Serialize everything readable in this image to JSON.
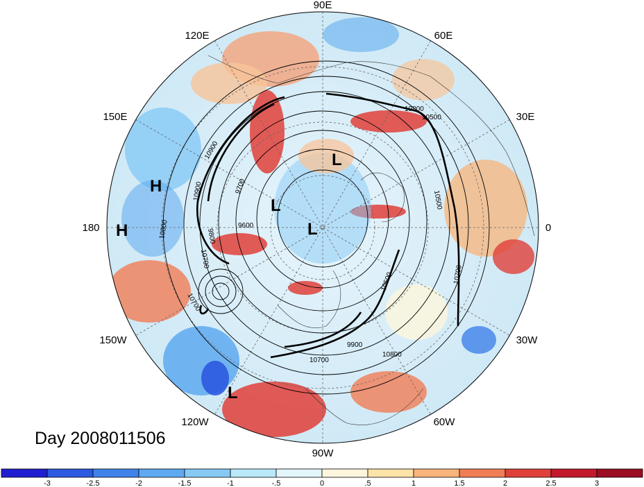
{
  "map": {
    "projection": "north-polar-stereographic",
    "center": "North Pole",
    "longitude_labels": [
      {
        "lon": 90,
        "text": "90E"
      },
      {
        "lon": 60,
        "text": "60E"
      },
      {
        "lon": 30,
        "text": "30E"
      },
      {
        "lon": 0,
        "text": "0"
      },
      {
        "lon": -30,
        "text": "30W"
      },
      {
        "lon": -60,
        "text": "60W"
      },
      {
        "lon": -90,
        "text": "90W"
      },
      {
        "lon": -120,
        "text": "120W"
      },
      {
        "lon": -150,
        "text": "150W"
      },
      {
        "lon": 180,
        "text": "180"
      },
      {
        "lon": 150,
        "text": "150E"
      },
      {
        "lon": 120,
        "text": "120E"
      }
    ],
    "pressure_systems": [
      {
        "type": "L",
        "location": "northern Siberia / Kara region"
      },
      {
        "type": "L",
        "location": "central Arctic"
      },
      {
        "type": "L",
        "location": "near pole"
      },
      {
        "type": "L",
        "location": "Gulf of Alaska area"
      },
      {
        "type": "H",
        "location": "west Pacific"
      },
      {
        "type": "H",
        "location": "central Pacific near dateline"
      }
    ],
    "contour_labels": [
      "10800",
      "10900",
      "10500",
      "10500",
      "10700",
      "9800",
      "9700",
      "9600",
      "10700",
      "10800",
      "10700",
      "10900",
      "10700",
      "10800",
      "10500",
      "9900"
    ]
  },
  "title": {
    "text": "Day 2008011506"
  },
  "colorbar": {
    "tick_labels": [
      "-3",
      "-2.5",
      "-2",
      "-1.5",
      "-1",
      "-.5",
      "0",
      ".5",
      "1",
      "1.5",
      "2",
      "2.5",
      "3"
    ],
    "colors": [
      "#1f1fd1",
      "#2b59e0",
      "#3f82ea",
      "#5ea9f0",
      "#86c9f5",
      "#b9e8f9",
      "#e2f5fb",
      "#fdf6dc",
      "#fce3a8",
      "#f8b47a",
      "#f17d55",
      "#e0403a",
      "#c3192d",
      "#9b0d22"
    ]
  }
}
